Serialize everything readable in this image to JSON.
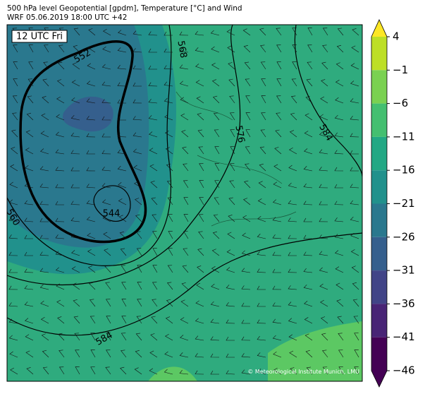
{
  "header": {
    "title": "500 hPa level Geopotential [gpdm], Temperature [°C] and Wind",
    "subtitle": "WRF 05.06.2019 18:00 UTC +42"
  },
  "map": {
    "time_label": "12 UTC Fri",
    "contour_labels": [
      552,
      568,
      576,
      584,
      560,
      544,
      584
    ],
    "credit": "© Meteorological Institute Munich, LMU"
  },
  "colorbar": {
    "lim": [
      -46,
      4
    ],
    "ticks": [
      4,
      {
        "value": -1,
        "label": "−1"
      },
      {
        "value": -6,
        "label": "−6"
      },
      {
        "value": -11,
        "label": "−11"
      },
      {
        "value": -16,
        "label": "−16"
      },
      {
        "value": -21,
        "label": "−21"
      },
      {
        "value": -26,
        "label": "−26"
      },
      {
        "value": -31,
        "label": "−31"
      },
      {
        "value": -36,
        "label": "−36"
      },
      {
        "value": -41,
        "label": "−41"
      },
      {
        "value": -46,
        "label": "−46"
      }
    ],
    "colors": [
      "#bddf26",
      "#7ad151",
      "#44bf70",
      "#22a884",
      "#21918c",
      "#2a788e",
      "#355f8d",
      "#414487",
      "#482475",
      "#440154"
    ],
    "extend_colors": [
      "#fde725",
      "#440154"
    ]
  }
}
